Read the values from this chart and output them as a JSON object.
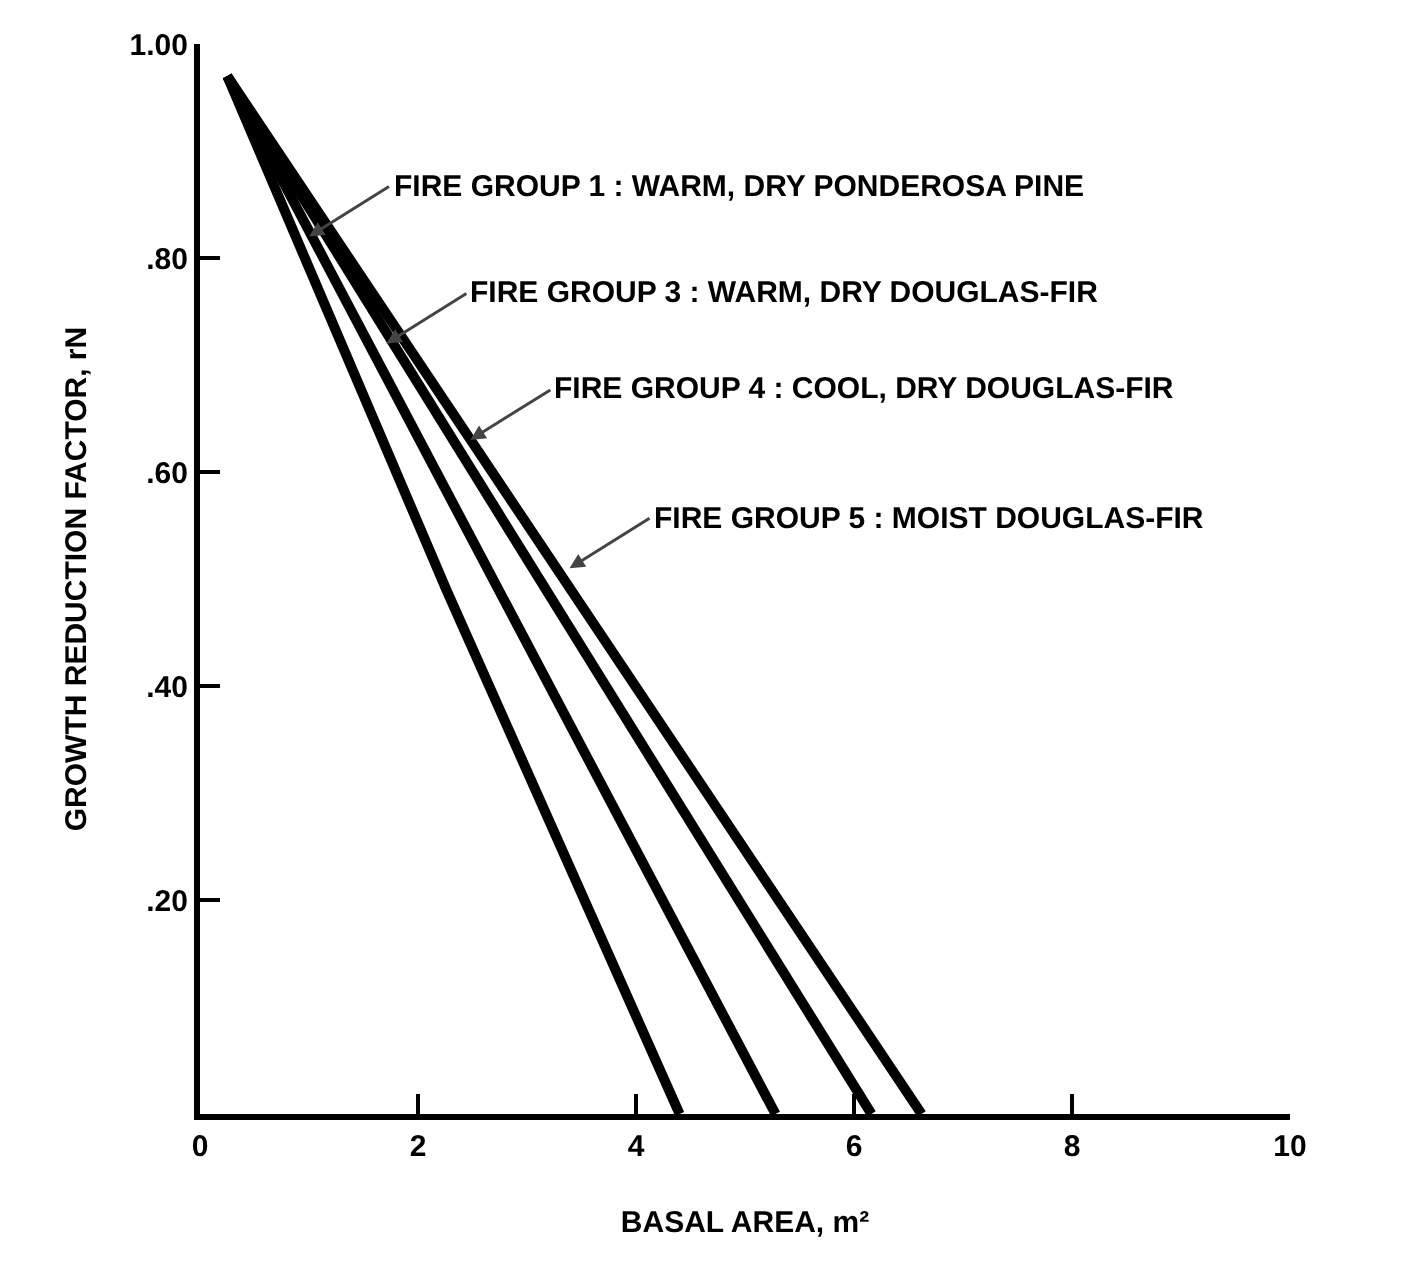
{
  "chart_data": {
    "type": "line",
    "xlabel": "BASAL AREA, m²",
    "ylabel": "GROWTH REDUCTION FACTOR, rN",
    "xlim": [
      0,
      10
    ],
    "xticks": [
      0,
      2,
      4,
      6,
      8,
      10
    ],
    "ylim": [
      0,
      1.0
    ],
    "yticks": [
      {
        "value": 0.2,
        "label": ".20"
      },
      {
        "value": 0.4,
        "label": ".40"
      },
      {
        "value": 0.6,
        "label": ".60"
      },
      {
        "value": 0.8,
        "label": ".80"
      },
      {
        "value": 1.0,
        "label": "1.00"
      }
    ],
    "marker": "none",
    "line_style": "solid",
    "series": [
      {
        "color": "#000000",
        "x": [
          0.25,
          2.26,
          4.4
        ],
        "values": [
          0.97,
          0.49,
          0
        ]
      },
      {
        "color": "#000000",
        "x": [
          0.25,
          5.28
        ],
        "values": [
          0.97,
          0
        ]
      },
      {
        "color": "#000000",
        "x": [
          0.25,
          6.16
        ],
        "values": [
          0.97,
          0
        ]
      },
      {
        "color": "#000000",
        "x": [
          0.25,
          6.62
        ],
        "values": [
          0.97,
          0
        ]
      }
    ],
    "annotations": [
      {
        "text": "FIRE GROUP 1 : WARM, DRY PONDEROSA PINE",
        "x": 1.0,
        "y": 0.82
      },
      {
        "text": "FIRE GROUP 3 : WARM, DRY DOUGLAS-FIR",
        "x": 1.71,
        "y": 0.72
      },
      {
        "text": "FIRE GROUP 4 : COOL, DRY DOUGLAS-FIR",
        "x": 2.48,
        "y": 0.63
      },
      {
        "text": "FIRE GROUP 5 : MOIST DOUGLAS-FIR",
        "x": 3.39,
        "y": 0.51
      }
    ]
  }
}
